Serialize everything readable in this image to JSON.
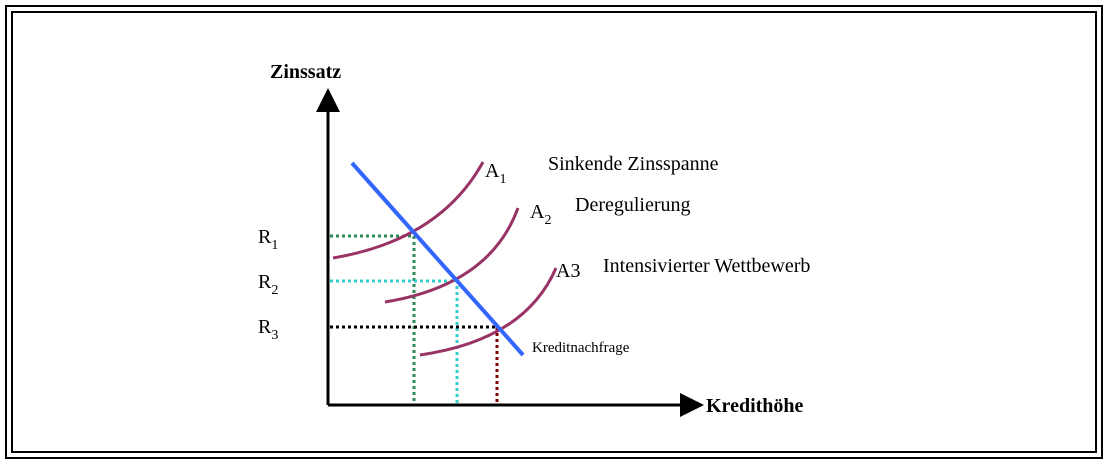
{
  "axes": {
    "y": "Zinssatz",
    "x": "Kredithöhe"
  },
  "curves": [
    {
      "label": "A",
      "sub": "1",
      "description": "Sinkende Zinsspanne"
    },
    {
      "label": "A",
      "sub": "2",
      "description": "Deregulierung"
    },
    {
      "label": "A3",
      "description": "Intensivierter Wettbewerb"
    }
  ],
  "rates": [
    {
      "label": "R",
      "sub": "1"
    },
    {
      "label": "R",
      "sub": "2"
    },
    {
      "label": "R",
      "sub": "3"
    }
  ],
  "demand": "Kreditnachfrage"
}
